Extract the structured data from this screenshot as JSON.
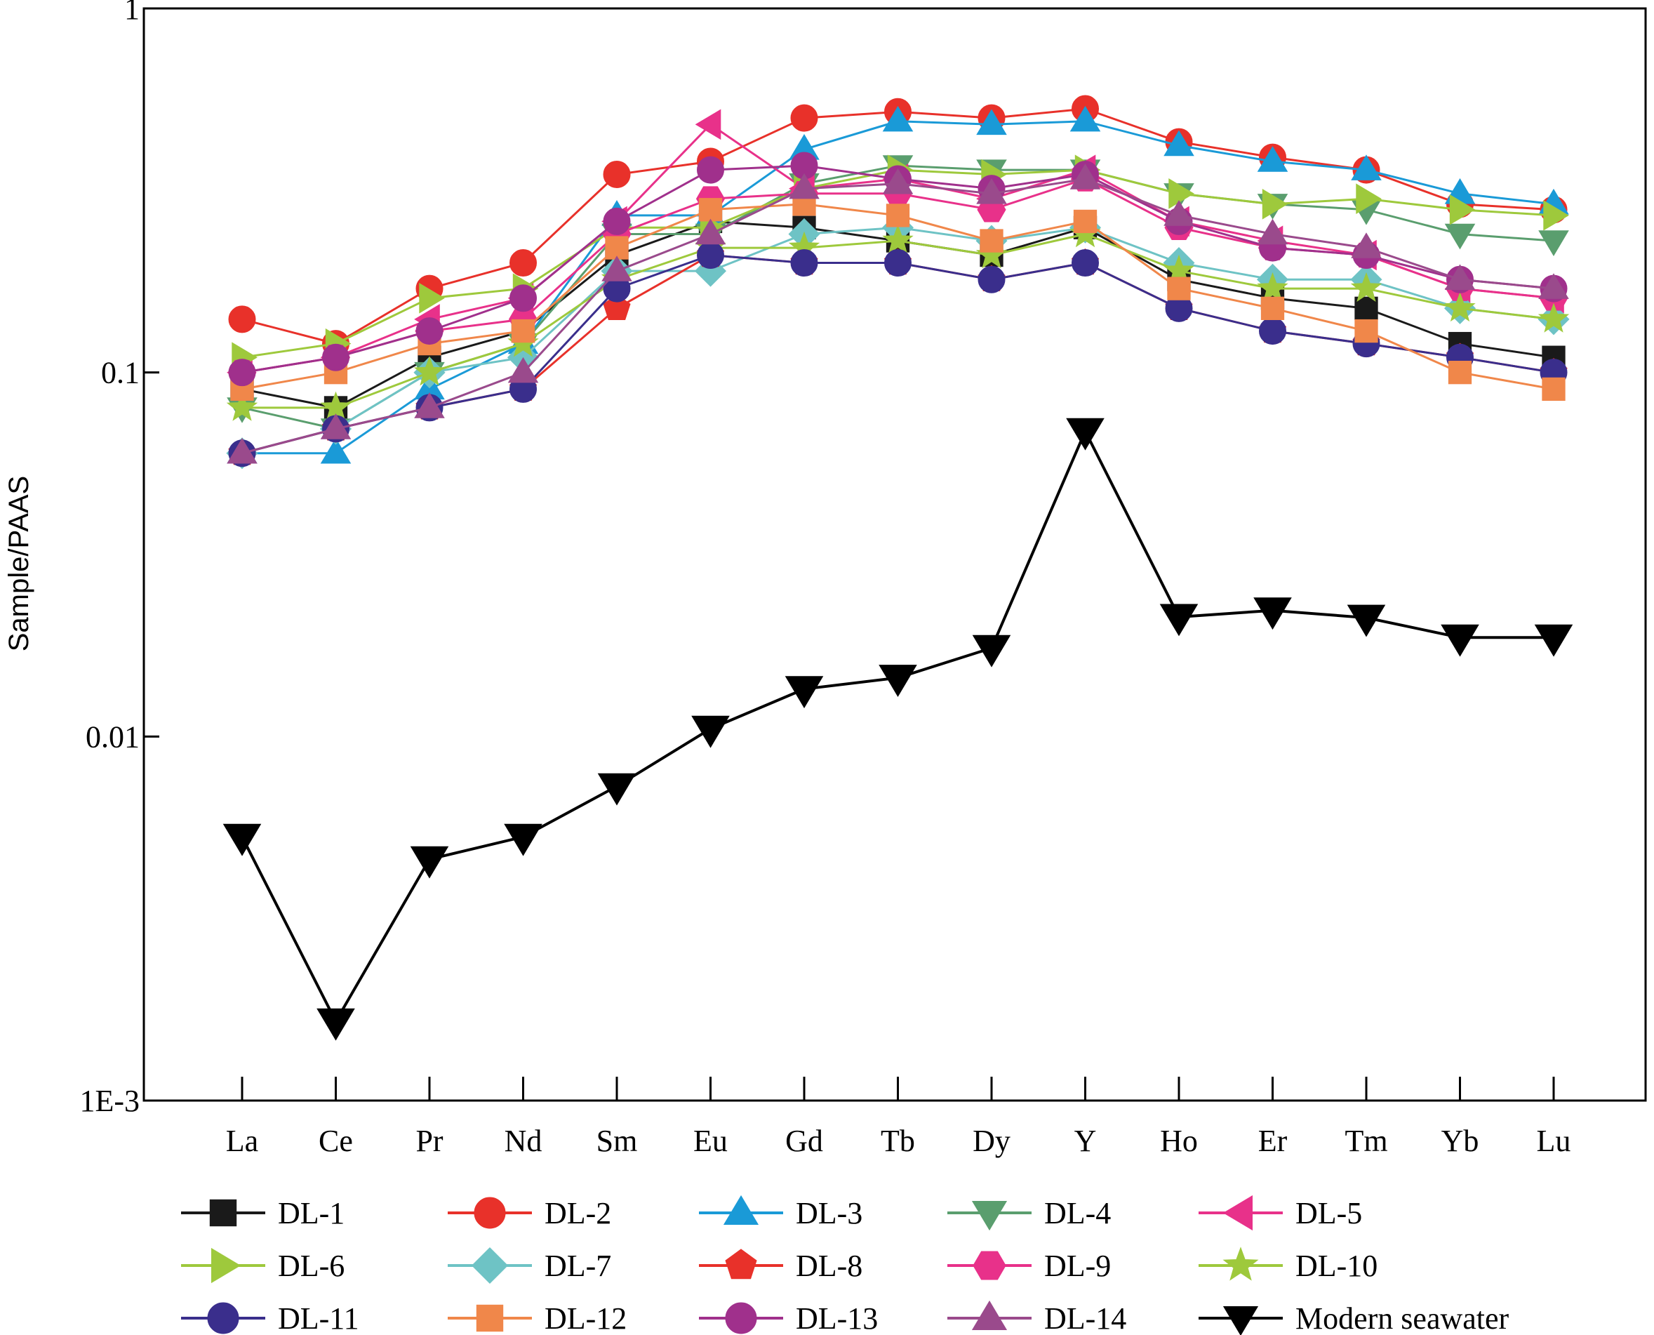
{
  "chart_data": {
    "type": "line",
    "title": "",
    "xlabel": "",
    "ylabel": "Sample/PAAS",
    "yscale": "log",
    "ylim": [
      0.001,
      1
    ],
    "yticks": [
      {
        "value": 1,
        "label": "1"
      },
      {
        "value": 0.1,
        "label": "0.1"
      },
      {
        "value": 0.01,
        "label": "0.01"
      },
      {
        "value": 0.001,
        "label": "1E-3"
      }
    ],
    "grid": false,
    "legend_position": "bottom",
    "categories": [
      "La",
      "Ce",
      "Pr",
      "Nd",
      "Sm",
      "Eu",
      "Gd",
      "Tb",
      "Dy",
      "Y",
      "Ho",
      "Er",
      "Tm",
      "Yb",
      "Lu"
    ],
    "series": [
      {
        "name": "DL-1",
        "color": "#1a1a1a",
        "marker": "square",
        "values": [
          0.09,
          0.08,
          0.11,
          0.13,
          0.21,
          0.26,
          0.25,
          0.23,
          0.21,
          0.25,
          0.18,
          0.16,
          0.15,
          0.12,
          0.11
        ]
      },
      {
        "name": "DL-2",
        "color": "#e8312a",
        "marker": "circle",
        "values": [
          0.14,
          0.12,
          0.17,
          0.2,
          0.35,
          0.38,
          0.5,
          0.52,
          0.5,
          0.53,
          0.43,
          0.39,
          0.36,
          0.29,
          0.28
        ]
      },
      {
        "name": "DL-3",
        "color": "#1a9ad7",
        "marker": "triangle-up",
        "values": [
          0.06,
          0.06,
          0.09,
          0.12,
          0.27,
          0.27,
          0.41,
          0.49,
          0.48,
          0.49,
          0.42,
          0.38,
          0.36,
          0.31,
          0.29
        ]
      },
      {
        "name": "DL-4",
        "color": "#5a9e6e",
        "marker": "triangle-down",
        "values": [
          0.08,
          0.07,
          0.1,
          0.12,
          0.24,
          0.24,
          0.33,
          0.37,
          0.36,
          0.36,
          0.31,
          0.29,
          0.28,
          0.24,
          0.23
        ]
      },
      {
        "name": "DL-5",
        "color": "#e8318a",
        "marker": "triangle-left",
        "values": [
          0.1,
          0.11,
          0.14,
          0.16,
          0.26,
          0.48,
          0.32,
          0.34,
          0.3,
          0.36,
          0.26,
          0.23,
          0.21,
          0.17,
          0.16
        ]
      },
      {
        "name": "DL-6",
        "color": "#9ec93c",
        "marker": "triangle-right",
        "values": [
          0.11,
          0.12,
          0.16,
          0.17,
          0.25,
          0.25,
          0.32,
          0.36,
          0.35,
          0.36,
          0.31,
          0.29,
          0.3,
          0.28,
          0.27
        ]
      },
      {
        "name": "DL-7",
        "color": "#6ec3c5",
        "marker": "diamond",
        "values": [
          0.06,
          0.07,
          0.1,
          0.11,
          0.19,
          0.19,
          0.24,
          0.25,
          0.23,
          0.25,
          0.2,
          0.18,
          0.18,
          0.15,
          0.14
        ]
      },
      {
        "name": "DL-8",
        "color": "#e8312a",
        "marker": "pentagon",
        "values": [
          0.06,
          0.07,
          0.08,
          0.09,
          0.15,
          0.21,
          0.2,
          0.2,
          0.18,
          0.2,
          0.15,
          0.13,
          0.12,
          0.11,
          0.1
        ]
      },
      {
        "name": "DL-9",
        "color": "#e8318a",
        "marker": "hexagon",
        "values": [
          0.1,
          0.11,
          0.13,
          0.14,
          0.24,
          0.3,
          0.31,
          0.31,
          0.28,
          0.34,
          0.25,
          0.22,
          0.21,
          0.17,
          0.16
        ]
      },
      {
        "name": "DL-10",
        "color": "#9ec93c",
        "marker": "star",
        "values": [
          0.08,
          0.08,
          0.1,
          0.12,
          0.18,
          0.22,
          0.22,
          0.23,
          0.21,
          0.24,
          0.19,
          0.17,
          0.17,
          0.15,
          0.14
        ]
      },
      {
        "name": "DL-11",
        "color": "#3a2e8c",
        "marker": "circle",
        "values": [
          0.06,
          0.07,
          0.08,
          0.09,
          0.17,
          0.21,
          0.2,
          0.2,
          0.18,
          0.2,
          0.15,
          0.13,
          0.12,
          0.11,
          0.1
        ]
      },
      {
        "name": "DL-12",
        "color": "#f0874a",
        "marker": "square",
        "values": [
          0.09,
          0.1,
          0.12,
          0.13,
          0.22,
          0.28,
          0.29,
          0.27,
          0.23,
          0.26,
          0.17,
          0.15,
          0.13,
          0.1,
          0.09
        ]
      },
      {
        "name": "DL-13",
        "color": "#a0308c",
        "marker": "circle",
        "values": [
          0.1,
          0.11,
          0.13,
          0.16,
          0.26,
          0.36,
          0.37,
          0.34,
          0.32,
          0.35,
          0.26,
          0.22,
          0.21,
          0.18,
          0.17
        ]
      },
      {
        "name": "DL-14",
        "color": "#9a4a8c",
        "marker": "triangle-up",
        "values": [
          0.06,
          0.07,
          0.08,
          0.1,
          0.19,
          0.24,
          0.32,
          0.33,
          0.31,
          0.34,
          0.27,
          0.24,
          0.22,
          0.18,
          0.17
        ]
      },
      {
        "name": "Modern seawater",
        "color": "#000000",
        "marker": "triangle-down",
        "values": [
          0.0053,
          0.00165,
          0.0046,
          0.0053,
          0.0073,
          0.0105,
          0.0135,
          0.0145,
          0.0175,
          0.069,
          0.0213,
          0.0222,
          0.0212,
          0.0187,
          0.0187
        ]
      }
    ]
  }
}
